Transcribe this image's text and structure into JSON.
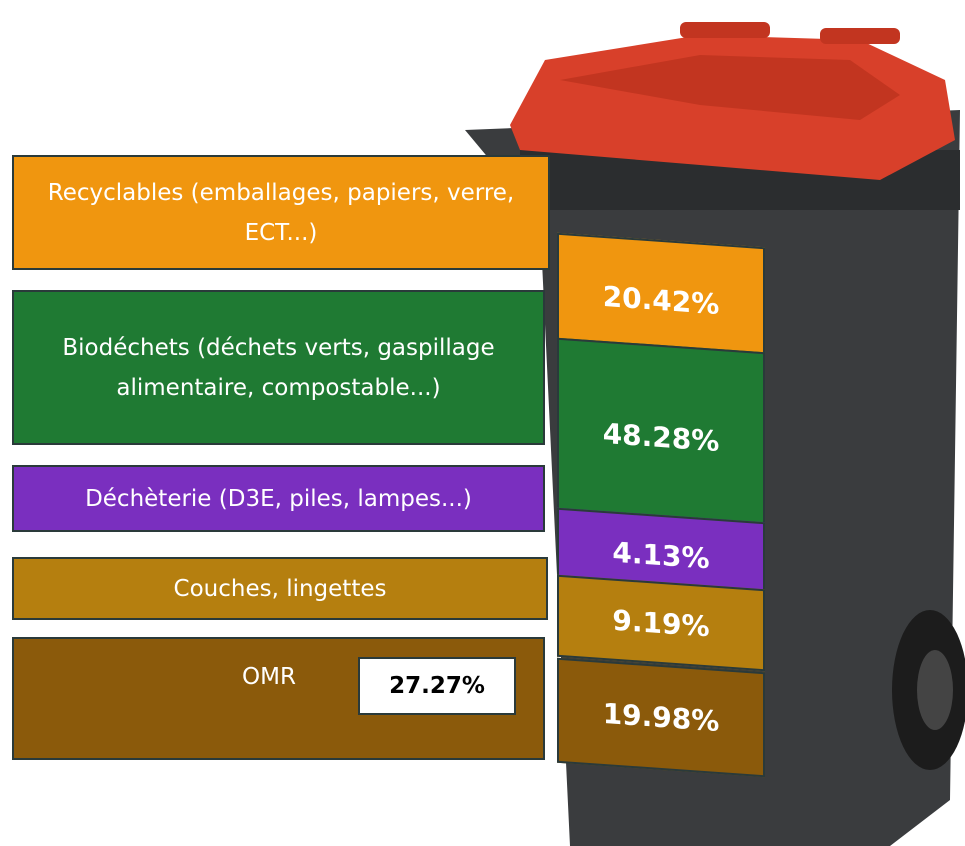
{
  "categories": [
    {
      "label": "Recyclables (emballages, papiers, verre, ECT...)",
      "share": "20.42%"
    },
    {
      "label": "Biodéchets (déchets verts, gaspillage alimentaire, compostable...)",
      "share": "48.28%"
    },
    {
      "label": "Déchèterie (D3E, piles, lampes...)",
      "share": "4.13%"
    },
    {
      "label": "Couches, lingettes",
      "share": "9.19%"
    },
    {
      "label": "OMR",
      "share": "19.98%"
    }
  ],
  "omr_total": "27.27%"
}
